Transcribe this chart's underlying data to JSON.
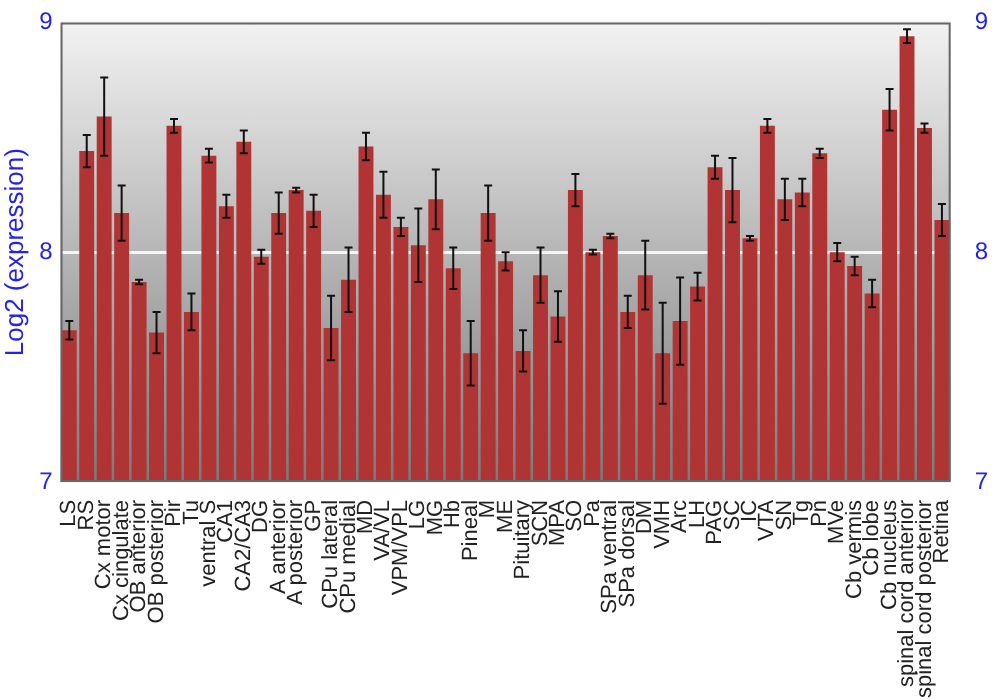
{
  "chart_data": {
    "type": "bar",
    "ylabel": "Log2 (expression)",
    "categories": [
      "LS",
      "RS",
      "Cx motor",
      "Cx cingulate",
      "OB anterior",
      "OB posterior",
      "Pir",
      "Tu",
      "ventral S",
      "CA1",
      "CA2/CA3",
      "DG",
      "A anterior",
      "A posterior",
      "GP",
      "CPu lateral",
      "CPu medial",
      "MD",
      "VA/VL",
      "VPM/VPL",
      "LG",
      "MG",
      "Hb",
      "Pineal",
      "M",
      "ME",
      "Pituitary",
      "SCN",
      "MPA",
      "SO",
      "Pa",
      "SPa ventral",
      "SPa dorsal",
      "DM",
      "VMH",
      "Arc",
      "LH",
      "PAG",
      "SC",
      "IC",
      "VTA",
      "SN",
      "Tg",
      "Pn",
      "MVe",
      "Cb vermis",
      "Cb lobe",
      "Cb nucleus",
      "spinal cord anterior",
      "spinal cord posterior",
      "Retina"
    ],
    "values": [
      7.66,
      8.44,
      8.59,
      8.17,
      7.87,
      7.65,
      8.55,
      7.74,
      8.42,
      8.2,
      8.48,
      7.98,
      8.17,
      8.27,
      8.18,
      7.67,
      7.88,
      8.46,
      8.25,
      8.11,
      8.03,
      8.23,
      7.93,
      7.56,
      8.17,
      7.96,
      7.57,
      7.9,
      7.72,
      8.27,
      8.0,
      8.07,
      7.74,
      7.9,
      7.56,
      7.7,
      7.85,
      8.37,
      8.27,
      8.06,
      8.55,
      8.23,
      8.26,
      8.43,
      8.0,
      7.94,
      7.82,
      8.62,
      8.94,
      8.54,
      8.14
    ],
    "errors": [
      0.04,
      0.07,
      0.17,
      0.12,
      0.01,
      0.09,
      0.03,
      0.08,
      0.03,
      0.05,
      0.05,
      0.03,
      0.09,
      0.01,
      0.07,
      0.14,
      0.14,
      0.06,
      0.1,
      0.04,
      0.16,
      0.13,
      0.09,
      0.14,
      0.12,
      0.04,
      0.09,
      0.12,
      0.11,
      0.07,
      0.01,
      0.01,
      0.07,
      0.15,
      0.22,
      0.19,
      0.06,
      0.05,
      0.14,
      0.01,
      0.03,
      0.09,
      0.06,
      0.02,
      0.04,
      0.04,
      0.06,
      0.09,
      0.03,
      0.02,
      0.07
    ],
    "color": "#b03434",
    "ylim": [
      7,
      9
    ],
    "yticks": [
      7,
      8,
      9
    ],
    "y2lim": [
      7,
      9
    ],
    "y2ticks": [
      7,
      8,
      9
    ],
    "grid": "y",
    "legend": false
  }
}
